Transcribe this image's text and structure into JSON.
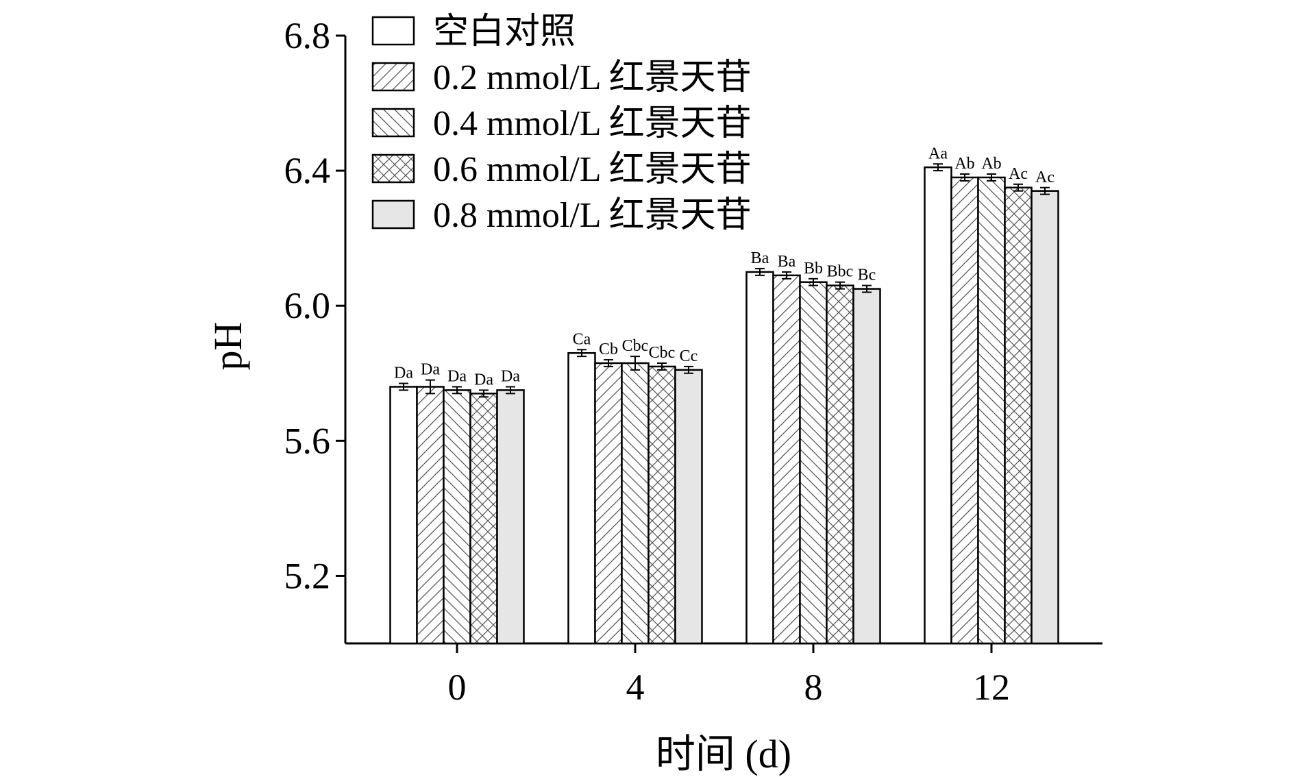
{
  "chart_data": {
    "type": "bar",
    "xlabel": "时间 (d)",
    "ylabel": "pH",
    "ylim": [
      5.0,
      6.8
    ],
    "yticks": [
      "5.2",
      "5.6",
      "6.0",
      "6.4",
      "6.8"
    ],
    "categories": [
      "0",
      "4",
      "8",
      "12"
    ],
    "legend_position": "top-left",
    "series": [
      {
        "name": "空白对照",
        "pattern": "none",
        "fill": "#ffffff",
        "values": [
          5.76,
          5.86,
          6.1,
          6.41
        ],
        "errors": [
          0.01,
          0.01,
          0.01,
          0.01
        ],
        "labels": [
          "Da",
          "Ca",
          "Ba",
          "Aa"
        ]
      },
      {
        "name": "0.2 mmol/L 红景天苷",
        "pattern": "diag-forward",
        "fill": "#ffffff",
        "values": [
          5.76,
          5.83,
          6.09,
          6.38
        ],
        "errors": [
          0.02,
          0.01,
          0.01,
          0.01
        ],
        "labels": [
          "Da",
          "Cb",
          "Ba",
          "Ab"
        ]
      },
      {
        "name": "0.4 mmol/L 红景天苷",
        "pattern": "diag-back",
        "fill": "#ffffff",
        "values": [
          5.75,
          5.83,
          6.07,
          6.38
        ],
        "errors": [
          0.01,
          0.02,
          0.01,
          0.01
        ],
        "labels": [
          "Da",
          "Cbc",
          "Bb",
          "Ab"
        ]
      },
      {
        "name": "0.6 mmol/L 红景天苷",
        "pattern": "cross",
        "fill": "#ffffff",
        "values": [
          5.74,
          5.82,
          6.06,
          6.35
        ],
        "errors": [
          0.01,
          0.01,
          0.01,
          0.01
        ],
        "labels": [
          "Da",
          "Cbc",
          "Bbc",
          "Ac"
        ]
      },
      {
        "name": "0.8 mmol/L 红景天苷",
        "pattern": "solid",
        "fill": "#e6e6e6",
        "values": [
          5.75,
          5.81,
          6.05,
          6.34
        ],
        "errors": [
          0.01,
          0.01,
          0.01,
          0.01
        ],
        "labels": [
          "Da",
          "Cc",
          "Bc",
          "Ac"
        ]
      }
    ]
  }
}
